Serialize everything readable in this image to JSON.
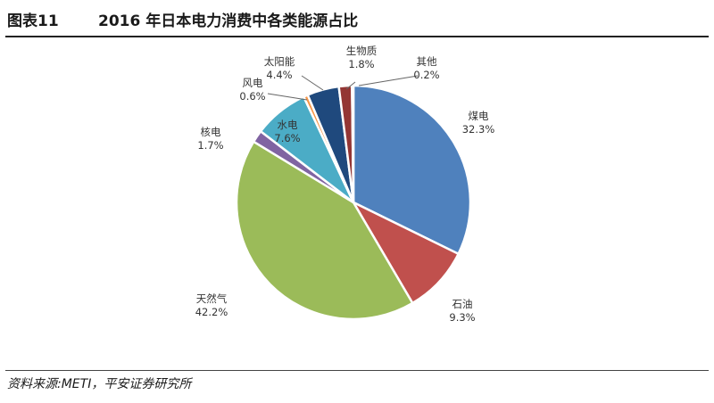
{
  "header": {
    "figure_label": "图表11",
    "title": "2016 年日本电力消费中各类能源占比"
  },
  "footer": {
    "source": "资料来源:METI，平安证券研究所"
  },
  "chart_data": {
    "type": "pie",
    "title": "2016 年日本电力消费中各类能源占比",
    "start": "12 o'clock",
    "direction": "clockwise",
    "slices": [
      {
        "label": "煤电",
        "value": 32.3,
        "value_text": "32.3%",
        "color": "#4f81bd"
      },
      {
        "label": "石油",
        "value": 9.3,
        "value_text": "9.3%",
        "color": "#c0504d"
      },
      {
        "label": "天然气",
        "value": 42.2,
        "value_text": "42.2%",
        "color": "#9bbb59"
      },
      {
        "label": "核电",
        "value": 1.7,
        "value_text": "1.7%",
        "color": "#8064a2"
      },
      {
        "label": "水电",
        "value": 7.6,
        "value_text": "7.6%",
        "color": "#4bacc6"
      },
      {
        "label": "风电",
        "value": 0.6,
        "value_text": "0.6%",
        "color": "#f79646"
      },
      {
        "label": "太阳能",
        "value": 4.4,
        "value_text": "4.4%",
        "color": "#1f497d"
      },
      {
        "label": "生物质",
        "value": 1.8,
        "value_text": "1.8%",
        "color": "#943634"
      },
      {
        "label": "其他",
        "value": 0.2,
        "value_text": "0.2%",
        "color": "#7f7f7f"
      }
    ]
  }
}
